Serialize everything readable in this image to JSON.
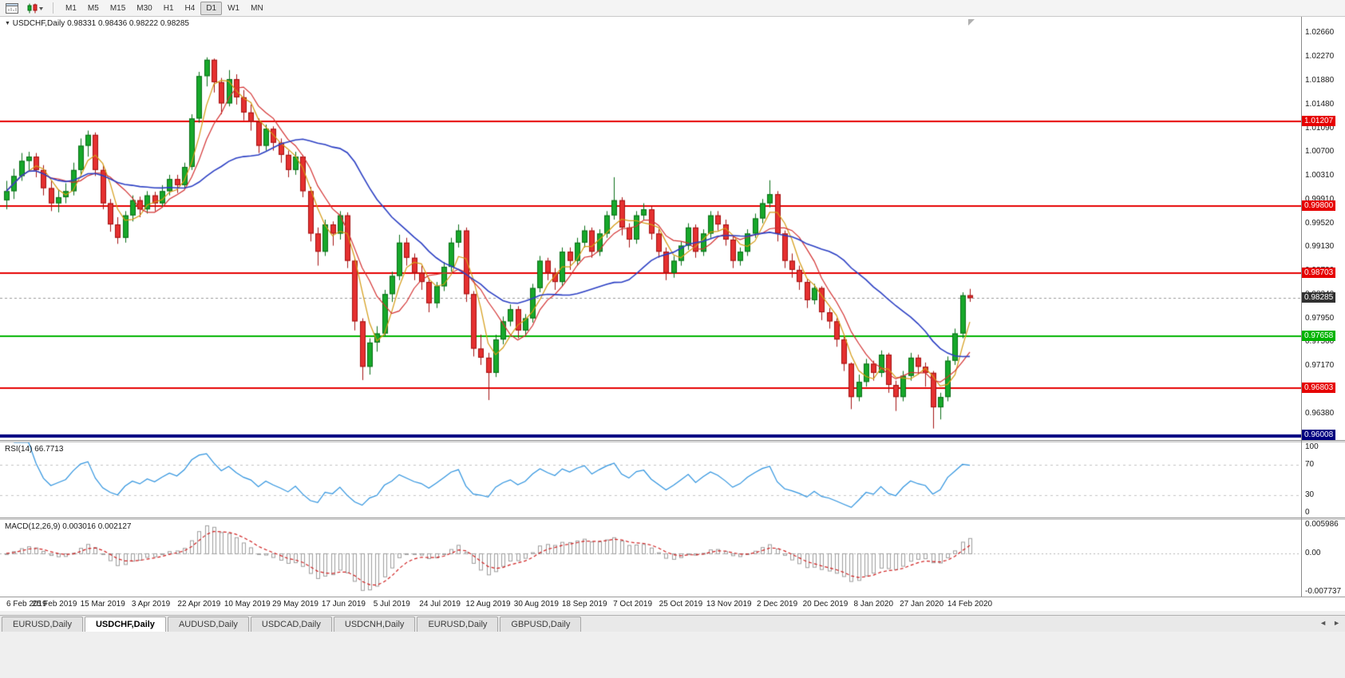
{
  "toolbar": {
    "timeframes": [
      "M1",
      "M5",
      "M15",
      "M30",
      "H1",
      "H4",
      "D1",
      "W1",
      "MN"
    ],
    "active_timeframe": "D1"
  },
  "icons": {
    "chart_menu_icon": "▼",
    "dropdown_caret_icon": "▾",
    "tab_scroll_left_icon": "◄",
    "tab_scroll_right_icon": "►"
  },
  "chart": {
    "header": {
      "symbol_period": "USDCHF,Daily",
      "ohlc": "0.98331 0.98436 0.98222 0.98285"
    }
  },
  "chart_data": {
    "type": "candlestick",
    "symbol": "USDCHF",
    "period": "Daily",
    "last_ohlc": {
      "open": 0.98331,
      "high": 0.98436,
      "low": 0.98222,
      "close": 0.98285
    },
    "x_axis": {
      "labels": [
        "6 Feb 2019",
        "25 Feb 2019",
        "15 Mar 2019",
        "3 Apr 2019",
        "22 Apr 2019",
        "10 May 2019",
        "29 May 2019",
        "17 Jun 2019",
        "5 Jul 2019",
        "24 Jul 2019",
        "12 Aug 2019",
        "30 Aug 2019",
        "18 Sep 2019",
        "7 Oct 2019",
        "25 Oct 2019",
        "13 Nov 2019",
        "2 Dec 2019",
        "20 Dec 2019",
        "8 Jan 2020",
        "27 Jan 2020",
        "14 Feb 2020"
      ]
    },
    "y_axis": {
      "top_price": 1.0293,
      "bottom_price": 0.9594,
      "ticks": [
        "1.02660",
        "1.02270",
        "1.01880",
        "1.01480",
        "1.01090",
        "1.00700",
        "1.00310",
        "0.99910",
        "0.99520",
        "0.99130",
        "0.98730",
        "0.98340",
        "0.97950",
        "0.97560",
        "0.97170",
        "0.96770",
        "0.96380"
      ]
    },
    "colors": {
      "bull": "#17A82A",
      "bull_border": "#0A6E18",
      "bear": "#E53030",
      "bear_border": "#A31212",
      "background": "#FFFFFF"
    },
    "horizontal_lines": [
      {
        "label": "1.01207",
        "price": 1.01207,
        "color": "#E60000",
        "width": 2
      },
      {
        "label": "0.99800",
        "price": 0.998,
        "color": "#E60000",
        "width": 2
      },
      {
        "label": "0.98703",
        "price": 0.98703,
        "color": "#E60000",
        "width": 2
      },
      {
        "label": "0.97658",
        "price": 0.97658,
        "color": "#00B400",
        "width": 2
      },
      {
        "label": "0.96803",
        "price": 0.96803,
        "color": "#E60000",
        "width": 2
      },
      {
        "label": "0.96008",
        "price": 0.96008,
        "color": "#000080",
        "width": 4
      }
    ],
    "current_price_line": {
      "label": "0.98285",
      "price": 0.98285,
      "badge_color": "#303030",
      "line_color": "#9A9A9A"
    },
    "moving_averages": [
      {
        "name": "ma-fast",
        "period": 4,
        "color": "#D49A12",
        "width": 1.2
      },
      {
        "name": "ma-mid",
        "period": 7,
        "color": "#D43030",
        "width": 1.2
      },
      {
        "name": "ma-slow",
        "period": 22,
        "color": "#2B3FC4",
        "width": 1.6
      }
    ],
    "candles": [
      [
        0.999,
        1.0022,
        0.9975,
        1.0005
      ],
      [
        1.0005,
        1.0042,
        0.9992,
        1.003
      ],
      [
        1.003,
        1.0068,
        1.0022,
        1.0055
      ],
      [
        1.0055,
        1.007,
        1.004,
        1.0062
      ],
      [
        1.0062,
        1.0068,
        1.0028,
        1.004
      ],
      [
        1.004,
        1.0048,
        0.9998,
        1.001
      ],
      [
        1.001,
        1.0022,
        0.9972,
        0.9985
      ],
      [
        0.9985,
        1.0008,
        0.997,
        0.9995
      ],
      [
        0.9995,
        1.0018,
        0.9985,
        1.0005
      ],
      [
        1.0005,
        1.0052,
        0.9998,
        1.004
      ],
      [
        1.004,
        1.0092,
        1.0032,
        1.008
      ],
      [
        1.008,
        1.0105,
        1.0062,
        1.0098
      ],
      [
        1.0098,
        1.0102,
        1.003,
        1.004
      ],
      [
        1.004,
        1.0048,
        0.9975,
        0.9985
      ],
      [
        0.9985,
        0.9992,
        0.9938,
        0.995
      ],
      [
        0.995,
        0.9962,
        0.9918,
        0.9928
      ],
      [
        0.9928,
        0.9972,
        0.992,
        0.9965
      ],
      [
        0.9965,
        0.9998,
        0.9955,
        0.999
      ],
      [
        0.999,
        0.9996,
        0.9962,
        0.9975
      ],
      [
        0.9975,
        1.0005,
        0.9968,
        0.9998
      ],
      [
        0.9998,
        1.0004,
        0.9972,
        0.9985
      ],
      [
        0.9985,
        1.0015,
        0.9978,
        1.0005
      ],
      [
        1.0005,
        1.0032,
        0.9998,
        1.0025
      ],
      [
        1.0025,
        1.0032,
        1.0002,
        1.0015
      ],
      [
        1.0015,
        1.0052,
        1.0008,
        1.0045
      ],
      [
        1.0045,
        1.0132,
        1.004,
        1.0125
      ],
      [
        1.0125,
        1.0202,
        1.0118,
        1.0195
      ],
      [
        1.0195,
        1.0226,
        1.0178,
        1.0222
      ],
      [
        1.0222,
        1.0224,
        1.0168,
        1.0185
      ],
      [
        1.0185,
        1.0192,
        1.0132,
        1.015
      ],
      [
        1.015,
        1.0205,
        1.0145,
        1.019
      ],
      [
        1.019,
        1.0198,
        1.0148,
        1.016
      ],
      [
        1.016,
        1.0172,
        1.0122,
        1.0135
      ],
      [
        1.0135,
        1.0148,
        1.0105,
        1.012
      ],
      [
        1.012,
        1.0125,
        1.0068,
        1.008
      ],
      [
        1.008,
        1.0115,
        1.0072,
        1.0108
      ],
      [
        1.0108,
        1.0112,
        1.0072,
        1.0085
      ],
      [
        1.0085,
        1.0092,
        1.0052,
        1.0065
      ],
      [
        1.0065,
        1.0072,
        1.0028,
        1.004
      ],
      [
        1.004,
        1.007,
        1.0032,
        1.0062
      ],
      [
        1.0062,
        1.0065,
        0.9995,
        1.0005
      ],
      [
        1.0005,
        1.0012,
        0.9922,
        0.9935
      ],
      [
        0.9935,
        0.9945,
        0.9882,
        0.9905
      ],
      [
        0.9905,
        0.9958,
        0.9898,
        0.995
      ],
      [
        0.995,
        0.9955,
        0.9915,
        0.9935
      ],
      [
        0.9935,
        0.9972,
        0.9925,
        0.9965
      ],
      [
        0.9965,
        0.997,
        0.9878,
        0.989
      ],
      [
        0.989,
        0.9895,
        0.9775,
        0.979
      ],
      [
        0.979,
        0.9795,
        0.9693,
        0.9715
      ],
      [
        0.9715,
        0.9762,
        0.9702,
        0.9755
      ],
      [
        0.9755,
        0.9782,
        0.974,
        0.977
      ],
      [
        0.977,
        0.9842,
        0.9765,
        0.9835
      ],
      [
        0.9835,
        0.9872,
        0.9822,
        0.9865
      ],
      [
        0.9865,
        0.9933,
        0.9858,
        0.992
      ],
      [
        0.992,
        0.9928,
        0.9882,
        0.9895
      ],
      [
        0.9895,
        0.9902,
        0.9858,
        0.987
      ],
      [
        0.987,
        0.9882,
        0.9842,
        0.9855
      ],
      [
        0.9855,
        0.9862,
        0.9805,
        0.982
      ],
      [
        0.982,
        0.9855,
        0.9812,
        0.9848
      ],
      [
        0.9848,
        0.9888,
        0.984,
        0.988
      ],
      [
        0.988,
        0.9928,
        0.9872,
        0.992
      ],
      [
        0.992,
        0.995,
        0.9912,
        0.994
      ],
      [
        0.994,
        0.9945,
        0.9822,
        0.9835
      ],
      [
        0.9835,
        0.984,
        0.9732,
        0.9745
      ],
      [
        0.9745,
        0.9768,
        0.9718,
        0.973
      ],
      [
        0.973,
        0.9738,
        0.966,
        0.9705
      ],
      [
        0.9705,
        0.9768,
        0.9698,
        0.976
      ],
      [
        0.976,
        0.9798,
        0.9752,
        0.979
      ],
      [
        0.979,
        0.9818,
        0.9782,
        0.981
      ],
      [
        0.981,
        0.9815,
        0.9762,
        0.9775
      ],
      [
        0.9775,
        0.9802,
        0.9765,
        0.9795
      ],
      [
        0.9795,
        0.9852,
        0.9788,
        0.9845
      ],
      [
        0.9845,
        0.9898,
        0.9838,
        0.989
      ],
      [
        0.989,
        0.9895,
        0.9858,
        0.987
      ],
      [
        0.987,
        0.9878,
        0.9842,
        0.9855
      ],
      [
        0.9855,
        0.9912,
        0.9848,
        0.9905
      ],
      [
        0.9905,
        0.9912,
        0.9875,
        0.989
      ],
      [
        0.989,
        0.9928,
        0.9882,
        0.992
      ],
      [
        0.992,
        0.9948,
        0.9912,
        0.994
      ],
      [
        0.994,
        0.9945,
        0.9895,
        0.9905
      ],
      [
        0.9905,
        0.9942,
        0.9898,
        0.9935
      ],
      [
        0.9935,
        0.9972,
        0.9928,
        0.9965
      ],
      [
        0.9965,
        1.0028,
        0.9958,
        0.999
      ],
      [
        0.999,
        0.9995,
        0.9932,
        0.9945
      ],
      [
        0.9945,
        0.9952,
        0.9912,
        0.9925
      ],
      [
        0.9925,
        0.9972,
        0.9918,
        0.9965
      ],
      [
        0.9965,
        0.9985,
        0.9958,
        0.9975
      ],
      [
        0.9975,
        0.998,
        0.9925,
        0.9935
      ],
      [
        0.9935,
        0.9942,
        0.9895,
        0.9905
      ],
      [
        0.9905,
        0.9912,
        0.9858,
        0.987
      ],
      [
        0.987,
        0.9898,
        0.9862,
        0.989
      ],
      [
        0.989,
        0.9922,
        0.9882,
        0.9915
      ],
      [
        0.9915,
        0.9952,
        0.9908,
        0.9945
      ],
      [
        0.9945,
        0.995,
        0.9895,
        0.9905
      ],
      [
        0.9905,
        0.9942,
        0.9898,
        0.9935
      ],
      [
        0.9935,
        0.9972,
        0.9928,
        0.9965
      ],
      [
        0.9965,
        0.9972,
        0.994,
        0.995
      ],
      [
        0.995,
        0.9958,
        0.9915,
        0.9925
      ],
      [
        0.9925,
        0.993,
        0.9878,
        0.989
      ],
      [
        0.989,
        0.9912,
        0.9882,
        0.9905
      ],
      [
        0.9905,
        0.9942,
        0.9898,
        0.9935
      ],
      [
        0.9935,
        0.9968,
        0.9928,
        0.996
      ],
      [
        0.996,
        0.9992,
        0.9952,
        0.9985
      ],
      [
        0.9985,
        1.0023,
        0.9978,
        1.0
      ],
      [
        1.0,
        1.0005,
        0.9922,
        0.9935
      ],
      [
        0.9935,
        0.994,
        0.9878,
        0.989
      ],
      [
        0.989,
        0.9902,
        0.9862,
        0.9875
      ],
      [
        0.9875,
        0.9882,
        0.9842,
        0.9855
      ],
      [
        0.9855,
        0.986,
        0.9812,
        0.9825
      ],
      [
        0.9825,
        0.9852,
        0.9818,
        0.9845
      ],
      [
        0.9845,
        0.9848,
        0.9792,
        0.9805
      ],
      [
        0.9805,
        0.9812,
        0.9778,
        0.979
      ],
      [
        0.979,
        0.9795,
        0.9748,
        0.976
      ],
      [
        0.976,
        0.9765,
        0.9708,
        0.972
      ],
      [
        0.972,
        0.9722,
        0.9645,
        0.9665
      ],
      [
        0.9665,
        0.9702,
        0.9658,
        0.969
      ],
      [
        0.969,
        0.9728,
        0.9682,
        0.972
      ],
      [
        0.972,
        0.9725,
        0.9692,
        0.9705
      ],
      [
        0.9705,
        0.9742,
        0.9698,
        0.9735
      ],
      [
        0.9735,
        0.9738,
        0.9672,
        0.9685
      ],
      [
        0.9685,
        0.9692,
        0.9642,
        0.9665
      ],
      [
        0.9665,
        0.9708,
        0.9658,
        0.97
      ],
      [
        0.97,
        0.9738,
        0.9692,
        0.973
      ],
      [
        0.973,
        0.9735,
        0.9702,
        0.9715
      ],
      [
        0.9715,
        0.9722,
        0.9682,
        0.9705
      ],
      [
        0.9705,
        0.9708,
        0.9613,
        0.9648
      ],
      [
        0.9648,
        0.9672,
        0.9628,
        0.9665
      ],
      [
        0.9665,
        0.9732,
        0.9658,
        0.9725
      ],
      [
        0.9725,
        0.9778,
        0.9718,
        0.977
      ],
      [
        0.977,
        0.9838,
        0.9762,
        0.9833
      ],
      [
        0.98331,
        0.98436,
        0.98222,
        0.98285
      ]
    ],
    "rsi_panel": {
      "label": "RSI(14)",
      "value_text": "66.7713",
      "period_visual": 7,
      "line_color": "#2E93DF",
      "levels": [
        70,
        30
      ],
      "ticks": [
        {
          "label": "100",
          "value": 100
        },
        {
          "label": "70",
          "value": 70
        },
        {
          "label": "30",
          "value": 30
        },
        {
          "label": "0",
          "value": 0
        }
      ]
    },
    "macd_panel": {
      "label": "MACD(12,26,9)",
      "values_text": "0.003016 0.002127",
      "fast_visual": 5,
      "slow_visual": 10,
      "signal_visual": 4,
      "hist_color": "#9E9E9E",
      "signal_color": "#D02020",
      "range": {
        "top": 0.0062,
        "bottom": -0.008
      },
      "ticks": [
        {
          "label": "0.005986",
          "value": 0.005986
        },
        {
          "label": "0.00",
          "value": 0
        },
        {
          "label": "-0.007737",
          "value": -0.007737
        }
      ]
    }
  },
  "tabs": {
    "items": [
      "EURUSD,Daily",
      "USDCHF,Daily",
      "AUDUSD,Daily",
      "USDCAD,Daily",
      "USDCNH,Daily",
      "EURUSD,Daily",
      "GBPUSD,Daily"
    ],
    "active_index": 1
  }
}
